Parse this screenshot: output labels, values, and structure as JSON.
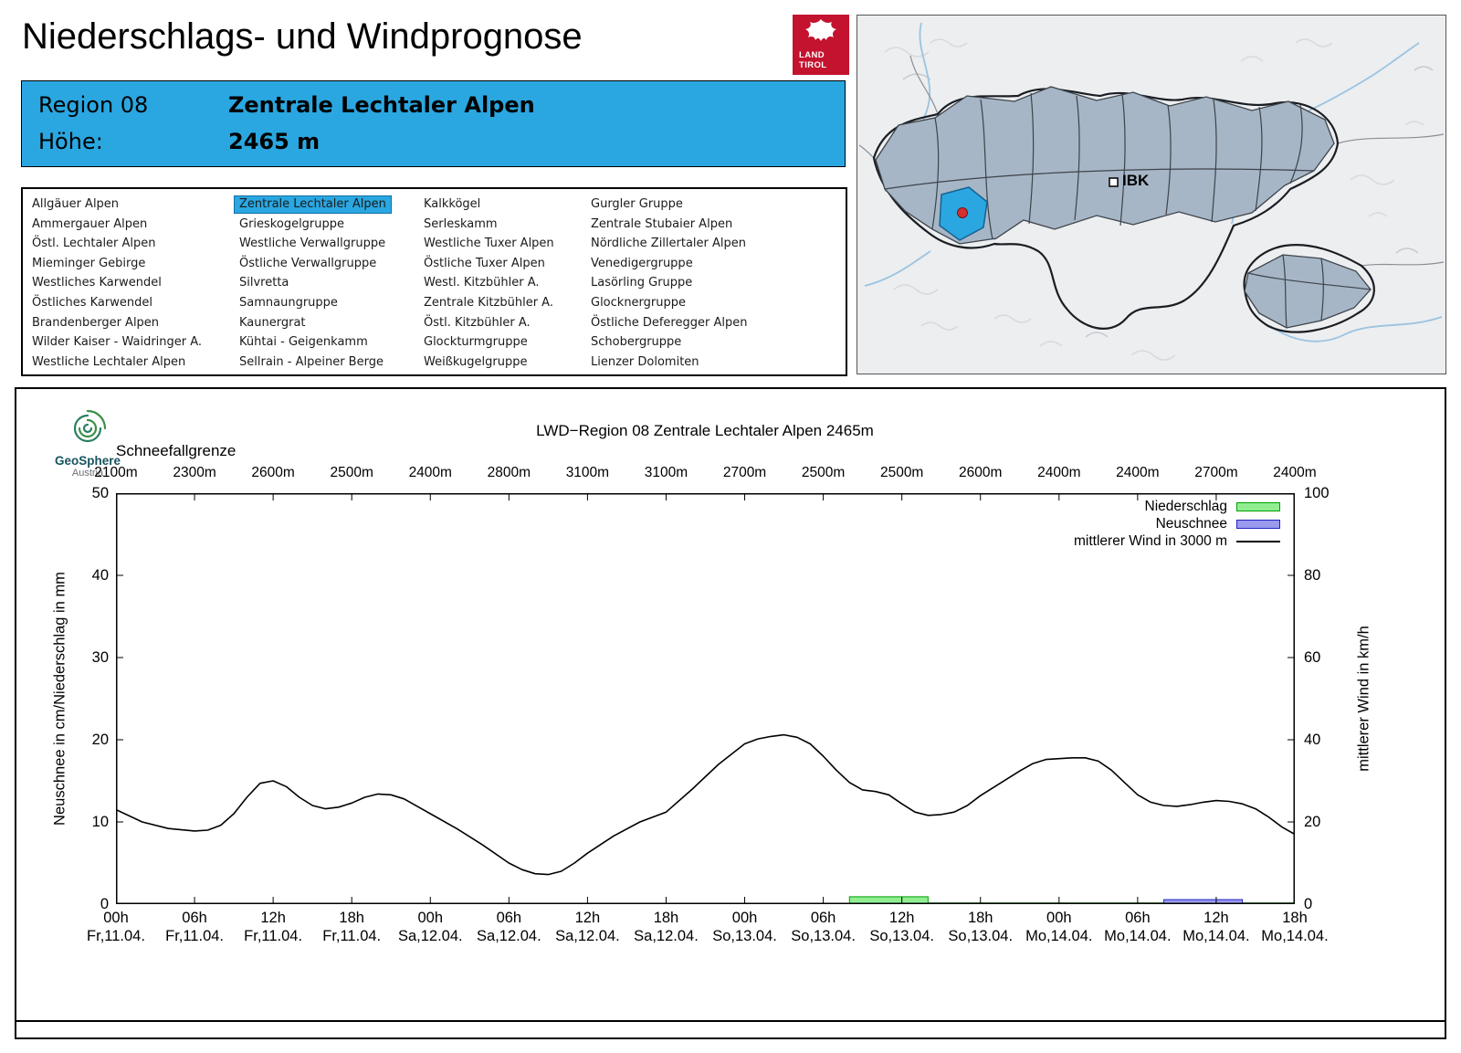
{
  "header": {
    "title": "Niederschlags- und Windprognose"
  },
  "logo_land_tirol": {
    "line1": "LAND",
    "line2": "TIROL",
    "color": "#c4132e"
  },
  "map": {
    "ibk_label": "IBK",
    "highlight_color": "#2aa7e1"
  },
  "region_info": {
    "region_label": "Region 08",
    "region_name": "Zentrale Lechtaler Alpen",
    "altitude_label": "Höhe:",
    "altitude_value": "2465 m",
    "background": "#2aa7e1"
  },
  "region_list": {
    "selected": "Zentrale Lechtaler Alpen",
    "columns": [
      [
        "Allgäuer Alpen",
        "Ammergauer Alpen",
        "Östl. Lechtaler Alpen",
        "Mieminger Gebirge",
        "Westliches Karwendel",
        "Östliches Karwendel",
        "Brandenberger Alpen",
        "Wilder Kaiser - Waidringer A.",
        "Westliche Lechtaler Alpen"
      ],
      [
        "Zentrale Lechtaler Alpen",
        "Grieskogelgruppe",
        "Westliche Verwallgruppe",
        "Östliche Verwallgruppe",
        "Silvretta",
        "Samnaungruppe",
        "Kaunergrat",
        "Kühtai - Geigenkamm",
        "Sellrain - Alpeiner Berge"
      ],
      [
        "Kalkkögel",
        "Serleskamm",
        "Westliche Tuxer Alpen",
        "Östliche Tuxer Alpen",
        "Westl. Kitzbühler A.",
        "Zentrale Kitzbühler A.",
        "Östl. Kitzbühler A.",
        "Glockturmgruppe",
        "Weißkugelgruppe"
      ],
      [
        "Gurgler Gruppe",
        "Zentrale Stubaier Alpen",
        "Nördliche Zillertaler Alpen",
        "Venedigergruppe",
        "Lasörling Gruppe",
        "Glocknergruppe",
        "Östliche Deferegger Alpen",
        "Schobergruppe",
        "Lienzer Dolomiten"
      ]
    ]
  },
  "geosphere_logo": {
    "name": "GeoSphere",
    "sub": "Austria"
  },
  "chart_data": {
    "type": "line",
    "title": "LWD−Region 08 Zentrale Lechtaler Alpen 2465m",
    "snowline_label": "Schneefallgrenze",
    "snowline_values": [
      "2100m",
      "2300m",
      "2600m",
      "2500m",
      "2400m",
      "2800m",
      "3100m",
      "3100m",
      "2700m",
      "2500m",
      "2500m",
      "2600m",
      "2400m",
      "2400m",
      "2700m",
      "2400m"
    ],
    "ylabel_left": "Neuschnee in cm/Niederschlag in mm",
    "ylabel_right": "mittlerer Wind in km/h",
    "ylim_left": [
      0,
      50
    ],
    "ylim_right": [
      0,
      100
    ],
    "yticks_left": [
      0,
      10,
      20,
      30,
      40,
      50
    ],
    "yticks_right": [
      0,
      20,
      40,
      60,
      80,
      100
    ],
    "x_span_hours": 90,
    "x_ticks": [
      {
        "time": "00h",
        "date": "Fr,11.04."
      },
      {
        "time": "06h",
        "date": "Fr,11.04."
      },
      {
        "time": "12h",
        "date": "Fr,11.04."
      },
      {
        "time": "18h",
        "date": "Fr,11.04."
      },
      {
        "time": "00h",
        "date": "Sa,12.04."
      },
      {
        "time": "06h",
        "date": "Sa,12.04."
      },
      {
        "time": "12h",
        "date": "Sa,12.04."
      },
      {
        "time": "18h",
        "date": "Sa,12.04."
      },
      {
        "time": "00h",
        "date": "So,13.04."
      },
      {
        "time": "06h",
        "date": "So,13.04."
      },
      {
        "time": "12h",
        "date": "So,13.04."
      },
      {
        "time": "18h",
        "date": "So,13.04."
      },
      {
        "time": "00h",
        "date": "Mo,14.04."
      },
      {
        "time": "06h",
        "date": "Mo,14.04."
      },
      {
        "time": "12h",
        "date": "Mo,14.04."
      },
      {
        "time": "18h",
        "date": "Mo,14.04."
      }
    ],
    "legend": [
      {
        "label": "Niederschlag",
        "type": "box",
        "fill": "#90ee90",
        "stroke": "#00a000"
      },
      {
        "label": "Neuschnee",
        "type": "box",
        "fill": "#9a9aee",
        "stroke": "#2424c8"
      },
      {
        "label": "mittlerer Wind in 3000 m",
        "type": "line",
        "stroke": "#000000"
      }
    ],
    "wind_series": {
      "name": "mittlerer Wind in 3000 m",
      "unit": "km/h",
      "axis": "right",
      "points": [
        [
          0,
          23
        ],
        [
          2,
          20
        ],
        [
          4,
          18.4
        ],
        [
          6,
          17.8
        ],
        [
          7,
          18
        ],
        [
          8,
          19.2
        ],
        [
          9,
          22
        ],
        [
          10,
          26
        ],
        [
          11,
          29.4
        ],
        [
          12,
          30
        ],
        [
          13,
          28.6
        ],
        [
          14,
          26
        ],
        [
          15,
          24
        ],
        [
          16,
          23.2
        ],
        [
          17,
          23.6
        ],
        [
          18,
          24.6
        ],
        [
          19,
          26
        ],
        [
          20,
          26.8
        ],
        [
          21,
          26.6
        ],
        [
          22,
          25.6
        ],
        [
          24,
          22
        ],
        [
          26,
          18.4
        ],
        [
          28,
          14.4
        ],
        [
          30,
          10
        ],
        [
          31,
          8.4
        ],
        [
          32,
          7.4
        ],
        [
          33,
          7.2
        ],
        [
          34,
          8
        ],
        [
          35,
          10
        ],
        [
          36,
          12.4
        ],
        [
          38,
          16.6
        ],
        [
          40,
          20
        ],
        [
          42,
          22.4
        ],
        [
          44,
          28
        ],
        [
          46,
          34
        ],
        [
          48,
          39
        ],
        [
          49,
          40.2
        ],
        [
          50,
          40.8
        ],
        [
          51,
          41.2
        ],
        [
          52,
          40.6
        ],
        [
          53,
          39
        ],
        [
          54,
          36
        ],
        [
          55,
          32.6
        ],
        [
          56,
          29.6
        ],
        [
          57,
          27.8
        ],
        [
          58,
          27.4
        ],
        [
          59,
          26.6
        ],
        [
          60,
          24.4
        ],
        [
          61,
          22.4
        ],
        [
          62,
          21.6
        ],
        [
          63,
          21.8
        ],
        [
          64,
          22.4
        ],
        [
          65,
          24
        ],
        [
          66,
          26.4
        ],
        [
          67,
          28.4
        ],
        [
          68,
          30.4
        ],
        [
          69,
          32.4
        ],
        [
          70,
          34.2
        ],
        [
          71,
          35.2
        ],
        [
          72,
          35.4
        ],
        [
          73,
          35.6
        ],
        [
          74,
          35.6
        ],
        [
          75,
          34.8
        ],
        [
          76,
          32.6
        ],
        [
          77,
          29.6
        ],
        [
          78,
          26.6
        ],
        [
          79,
          24.8
        ],
        [
          80,
          24
        ],
        [
          81,
          23.8
        ],
        [
          82,
          24.2
        ],
        [
          83,
          24.8
        ],
        [
          84,
          25.2
        ],
        [
          85,
          25
        ],
        [
          86,
          24.4
        ],
        [
          87,
          23.2
        ],
        [
          88,
          21.2
        ],
        [
          89,
          18.8
        ],
        [
          90,
          17
        ]
      ]
    },
    "niederschlag_bars": [
      {
        "start_h": 56,
        "end_h": 62,
        "value_mm": 0.9
      },
      {
        "start_h": 62,
        "end_h": 90,
        "value_mm": 0.15
      }
    ],
    "neuschnee_bars": [
      {
        "start_h": 80,
        "end_h": 86,
        "value_cm": 0.55
      }
    ]
  }
}
